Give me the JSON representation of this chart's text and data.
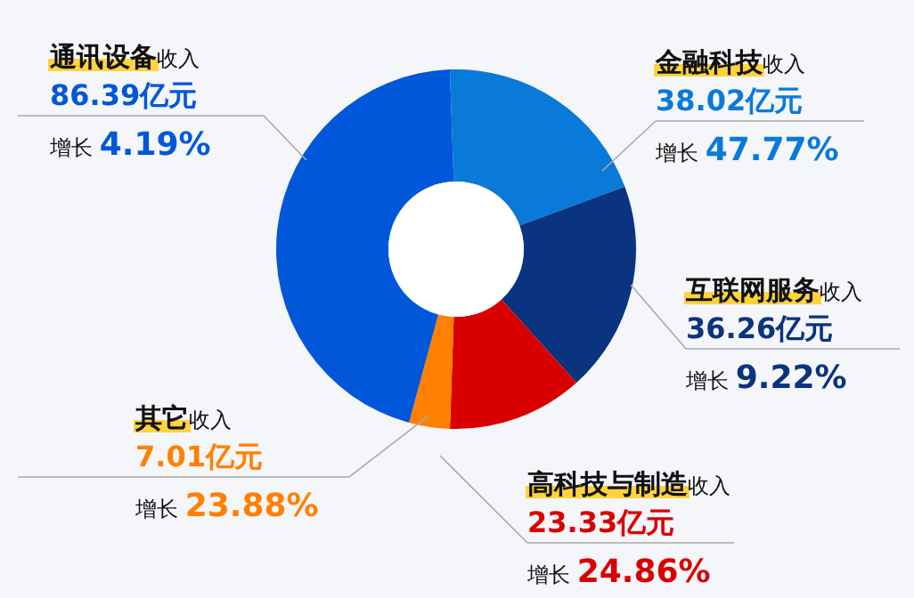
{
  "chart_data": {
    "type": "donut",
    "categories": [
      "通讯设备",
      "金融科技",
      "互联网服务",
      "高科技与制造",
      "其它"
    ],
    "values": [
      86.39,
      38.02,
      36.26,
      23.33,
      7.01
    ],
    "colors": [
      "#0057d9",
      "#0a7ad8",
      "#0a3380",
      "#d90000",
      "#ff8000"
    ],
    "value_labels": [
      "86.39亿元",
      "38.02亿元",
      "36.26亿元",
      "23.33亿元",
      "7.01亿元"
    ],
    "annotations": [
      "收入",
      "增长 4.19%",
      "收入",
      "增长 47.77%",
      "收入",
      "增长 9.22%",
      "收入",
      "增长 24.86%",
      "收入",
      "增长 23.88%"
    ]
  }
}
